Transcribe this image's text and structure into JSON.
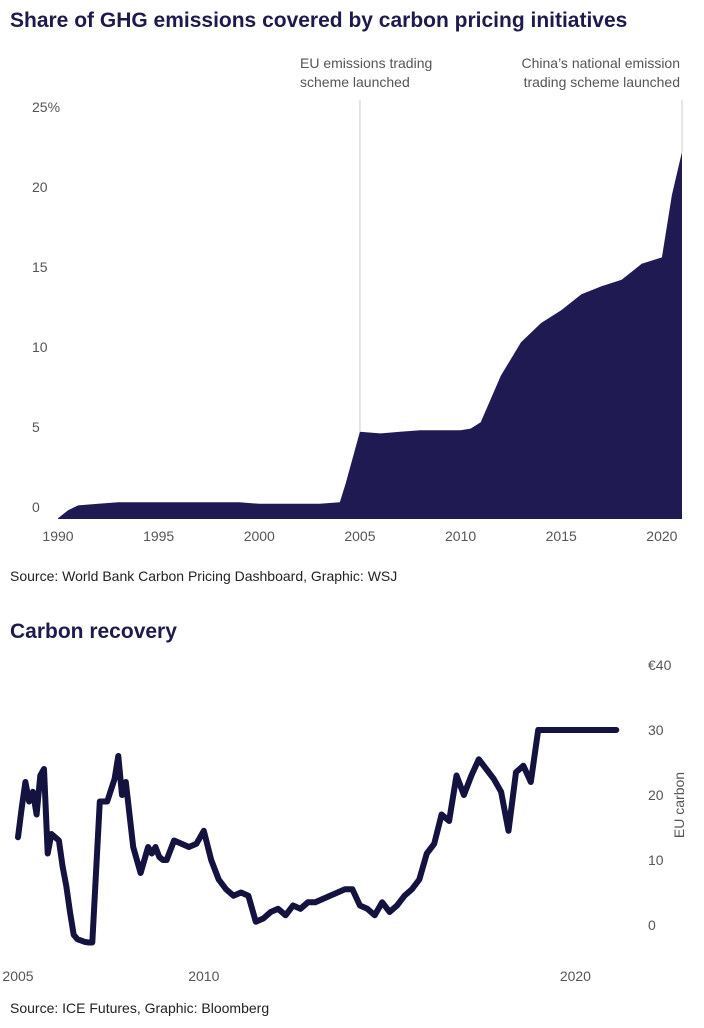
{
  "chart_data": [
    {
      "type": "area",
      "title": "Share of GHG emissions covered by carbon pricing initiatives",
      "source": "Source: World Bank Carbon Pricing Dashboard, Graphic: WSJ",
      "color": "#201a52",
      "xlim": [
        1990,
        2021
      ],
      "ylim": [
        0,
        25
      ],
      "x_ticks": [
        "1990",
        "1995",
        "2000",
        "2005",
        "2010",
        "2015",
        "2020"
      ],
      "x_tick_values": [
        1990,
        1995,
        2000,
        2005,
        2010,
        2015,
        2020
      ],
      "y_ticks": [
        "0",
        "5",
        "10",
        "15",
        "20",
        "25%"
      ],
      "y_tick_values": [
        0,
        5,
        10,
        15,
        20,
        25
      ],
      "annotations": [
        {
          "x": 2005,
          "line1": "EU emissions trading",
          "line2": "scheme launched"
        },
        {
          "x": 2021,
          "line1": "China’s national emission",
          "line2": "trading scheme launched"
        }
      ],
      "x": [
        1990,
        1990.5,
        1991,
        1992,
        1993,
        1994,
        1995,
        1996,
        1997,
        1998,
        1999,
        2000,
        2001,
        2002,
        2003,
        2004,
        2004.3,
        2005,
        2006,
        2007,
        2008,
        2009,
        2010,
        2010.5,
        2011,
        2012,
        2013,
        2014,
        2015,
        2016,
        2017,
        2018,
        2019,
        2020,
        2020.5,
        2021
      ],
      "values": [
        -0.7,
        -0.2,
        0.1,
        0.2,
        0.3,
        0.3,
        0.3,
        0.3,
        0.3,
        0.3,
        0.3,
        0.2,
        0.2,
        0.2,
        0.2,
        0.3,
        1.5,
        4.7,
        4.6,
        4.7,
        4.8,
        4.8,
        4.8,
        4.9,
        5.3,
        8.2,
        10.3,
        11.5,
        12.3,
        13.3,
        13.8,
        14.2,
        15.2,
        15.6,
        19.5,
        22.2
      ]
    },
    {
      "type": "line",
      "title": "Carbon recovery",
      "source": "Source: ICE Futures, Graphic: Bloomberg",
      "color": "#14123f",
      "ylabel": "EU carbon",
      "xlim": [
        2005,
        2021.2
      ],
      "ylim": [
        0,
        40
      ],
      "x_ticks": [
        "2005",
        "2010",
        "2020"
      ],
      "x_tick_values": [
        2005,
        2010,
        2020
      ],
      "y_ticks": [
        "0",
        "10",
        "20",
        "30",
        "€40"
      ],
      "y_tick_values": [
        0,
        10,
        20,
        30,
        40
      ],
      "x": [
        2005.0,
        2005.1,
        2005.2,
        2005.3,
        2005.4,
        2005.5,
        2005.6,
        2005.7,
        2005.8,
        2005.9,
        2006.0,
        2006.1,
        2006.2,
        2006.3,
        2006.4,
        2006.5,
        2006.6,
        2006.7,
        2006.8,
        2006.9,
        2007.0,
        2007.2,
        2007.4,
        2007.6,
        2007.7,
        2007.8,
        2007.9,
        2008.1,
        2008.3,
        2008.5,
        2008.6,
        2008.7,
        2008.8,
        2008.9,
        2009.0,
        2009.2,
        2009.4,
        2009.6,
        2009.8,
        2010.0,
        2010.2,
        2010.4,
        2010.6,
        2010.8,
        2011.0,
        2011.2,
        2011.4,
        2011.6,
        2011.8,
        2012.0,
        2012.2,
        2012.4,
        2012.6,
        2012.8,
        2013.0,
        2013.2,
        2013.4,
        2013.6,
        2013.8,
        2014.0,
        2014.2,
        2014.4,
        2014.6,
        2014.8,
        2015.0,
        2015.2,
        2015.4,
        2015.6,
        2015.8,
        2016.0,
        2016.2,
        2016.4,
        2016.6,
        2016.8,
        2017.0,
        2017.2,
        2017.4,
        2017.6,
        2017.8,
        2018.0,
        2018.2,
        2018.4,
        2018.6,
        2018.8,
        2019.0,
        2019.2,
        2019.4,
        2019.6,
        2019.8,
        2020.0,
        2020.2,
        2020.4,
        2020.6,
        2020.8,
        2021.0,
        2021.1
      ],
      "values": [
        13.5,
        18,
        22,
        19,
        20.5,
        17,
        23,
        24,
        11,
        14,
        13.5,
        13,
        9,
        6,
        2,
        -1.5,
        -2.2,
        -2.4,
        -2.6,
        -2.7,
        -2.7,
        19,
        19,
        22.5,
        26,
        20,
        22,
        12,
        8,
        12,
        11,
        12,
        10.5,
        10,
        10,
        13,
        12.5,
        12,
        12.5,
        14.5,
        10,
        7,
        5.5,
        4.5,
        5,
        4.5,
        0.5,
        1,
        2,
        2.5,
        1.5,
        3,
        2.5,
        3.5,
        3.5,
        4,
        4.5,
        5,
        5.5,
        5.5,
        3,
        2.5,
        1.5,
        3.5,
        2,
        3,
        4.5,
        5.5,
        7,
        11,
        12.5,
        17,
        16,
        23,
        20,
        23,
        25.5,
        24,
        22.5,
        20.5,
        14.5,
        23.5,
        24.5,
        22,
        30,
        30,
        30,
        30,
        30,
        30,
        30,
        30,
        30,
        30,
        30,
        30
      ]
    }
  ]
}
